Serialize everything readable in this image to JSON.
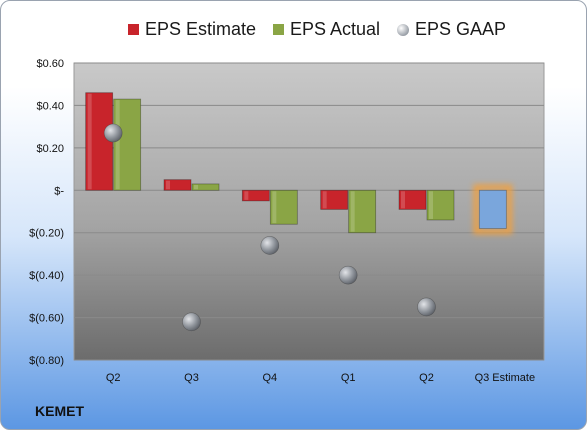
{
  "company": "KEMET",
  "chart_data": {
    "type": "bar",
    "categories": [
      "Q2",
      "Q3",
      "Q4",
      "Q1",
      "Q2",
      "Q3 Estimate"
    ],
    "series": [
      {
        "name": "EPS Estimate",
        "color": "#c8242b",
        "values": [
          0.46,
          0.05,
          -0.05,
          -0.09,
          -0.09,
          null
        ]
      },
      {
        "name": "EPS Actual",
        "color": "#8aa545",
        "values": [
          0.43,
          0.03,
          -0.16,
          -0.2,
          -0.14,
          null
        ]
      },
      {
        "name": "EPS GAAP",
        "color": "#a6abb2",
        "values": [
          0.27,
          -0.62,
          -0.26,
          -0.4,
          -0.55,
          null
        ]
      }
    ],
    "estimate": {
      "category": "Q3 Estimate",
      "value": -0.18,
      "color": "#7aa6dc",
      "glow": "#f0a040"
    },
    "ylim": [
      -0.8,
      0.6
    ],
    "yticks": [
      0.6,
      0.4,
      0.2,
      0,
      -0.2,
      -0.4,
      -0.6,
      -0.8
    ],
    "ytick_labels": [
      "$0.60",
      "$0.40",
      "$0.20",
      "$-",
      "$(0.20)",
      "$(0.40)",
      "$(0.60)",
      "$(0.80)"
    ],
    "legend_position": "top",
    "grid": true
  }
}
